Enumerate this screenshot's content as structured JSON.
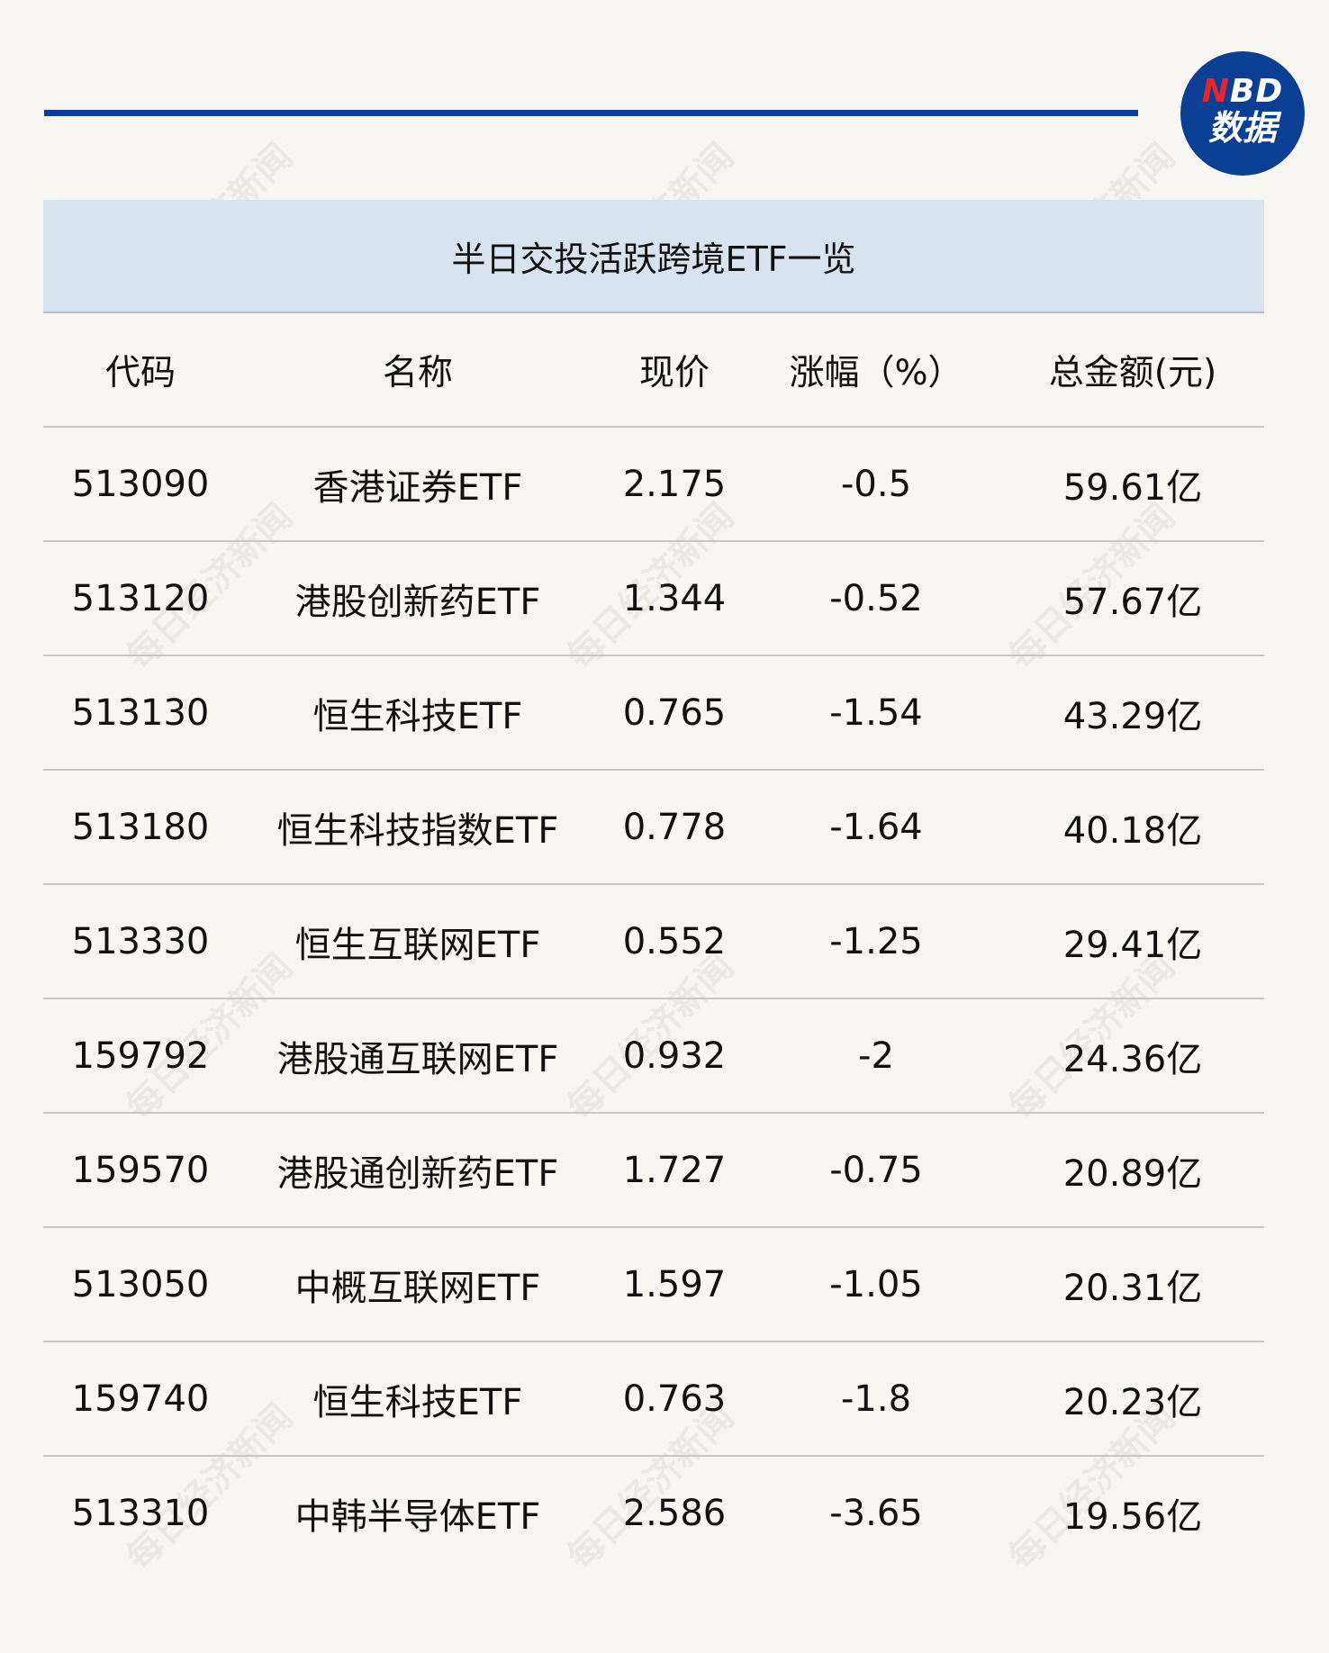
{
  "logo": {
    "line1_accent": "N",
    "line1_rest": "BD",
    "line2": "数据"
  },
  "title": "半日交投活跃跨境ETF一览",
  "watermark": "每日经济新闻",
  "columns": [
    "代码",
    "名称",
    "现价",
    "涨幅（%）",
    "总金额(元)"
  ],
  "rows": [
    [
      "513090",
      "香港证券ETF",
      "2.175",
      "-0.5",
      "59.61亿"
    ],
    [
      "513120",
      "港股创新药ETF",
      "1.344",
      "-0.52",
      "57.67亿"
    ],
    [
      "513130",
      "恒生科技ETF",
      "0.765",
      "-1.54",
      "43.29亿"
    ],
    [
      "513180",
      "恒生科技指数ETF",
      "0.778",
      "-1.64",
      "40.18亿"
    ],
    [
      "513330",
      "恒生互联网ETF",
      "0.552",
      "-1.25",
      "29.41亿"
    ],
    [
      "159792",
      "港股通互联网ETF",
      "0.932",
      "-2",
      "24.36亿"
    ],
    [
      "159570",
      "港股通创新药ETF",
      "1.727",
      "-0.75",
      "20.89亿"
    ],
    [
      "513050",
      "中概互联网ETF",
      "1.597",
      "-1.05",
      "20.31亿"
    ],
    [
      "159740",
      "恒生科技ETF",
      "0.763",
      "-1.8",
      "20.23亿"
    ],
    [
      "513310",
      "中韩半导体ETF",
      "2.586",
      "-3.65",
      "19.56亿"
    ]
  ],
  "colors": {
    "brand": "#0b3f93",
    "accent": "#e3262f",
    "title_bg": "#d7e4ef",
    "background": "#f8f6f2"
  }
}
